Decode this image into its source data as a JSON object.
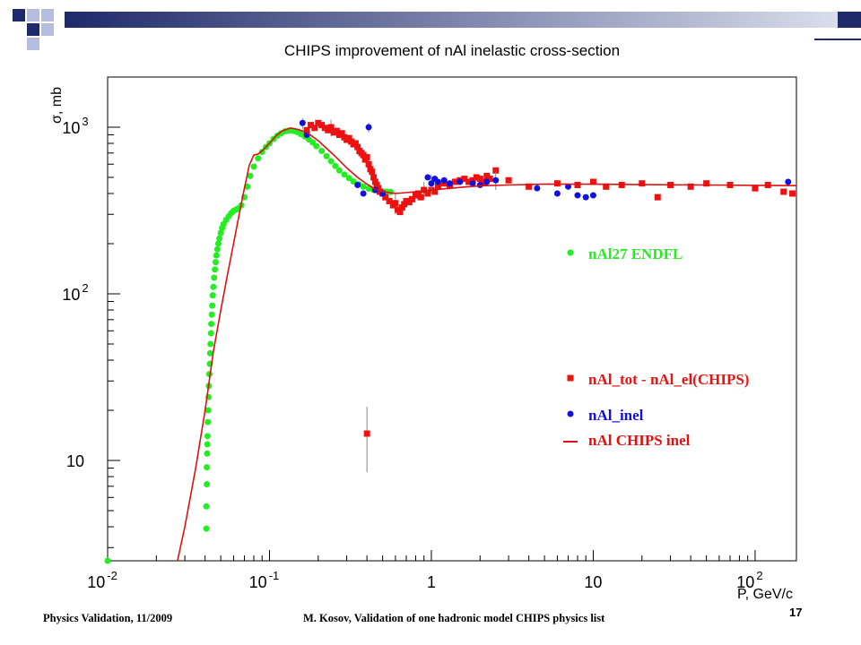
{
  "slide": {
    "footer_left": "Physics Validation, 11/2009",
    "footer_center": "M. Kosov,  Validation of one hadronic model CHIPS physics list",
    "page_number": "17",
    "colors": {
      "header_bar_dark": "#1e2a6a",
      "header_bar_light": "#dfe2ef",
      "square_dark": "#1e2a6a",
      "square_light": "#b6bee0"
    }
  },
  "chart_data": {
    "type": "scatter",
    "title": "CHIPS improvement of nAl inelastic cross-section",
    "xlabel": "P, GeV/c",
    "ylabel": "σ, mb",
    "xscale": "log",
    "yscale": "log",
    "xlim": [
      0.01,
      180
    ],
    "ylim": [
      2.5,
      2000
    ],
    "x_ticks": [
      {
        "v": 0.01,
        "b": "10",
        "e": "-2"
      },
      {
        "v": 0.1,
        "b": "10",
        "e": "-1"
      },
      {
        "v": 1,
        "b": "1",
        "e": ""
      },
      {
        "v": 10,
        "b": "10",
        "e": ""
      },
      {
        "v": 100,
        "b": "10",
        "e": "2"
      }
    ],
    "y_ticks": [
      {
        "v": 10,
        "b": "10",
        "e": ""
      },
      {
        "v": 100,
        "b": "10",
        "e": "2"
      },
      {
        "v": 1000,
        "b": "10",
        "e": "3"
      }
    ],
    "grid": false,
    "legend_position": "right",
    "series": [
      {
        "name": "nAl27 ENDFL",
        "kind": "points",
        "color": "#22ee22",
        "points": [
          [
            0.01,
            2.5
          ],
          [
            0.0407,
            3.9
          ],
          [
            0.0407,
            5.3
          ],
          [
            0.041,
            7.2
          ],
          [
            0.041,
            9.1
          ],
          [
            0.0412,
            11
          ],
          [
            0.0413,
            12.5
          ],
          [
            0.0414,
            14
          ],
          [
            0.0416,
            17
          ],
          [
            0.0418,
            20
          ],
          [
            0.042,
            24
          ],
          [
            0.0422,
            28
          ],
          [
            0.0425,
            33
          ],
          [
            0.0428,
            38
          ],
          [
            0.043,
            44
          ],
          [
            0.0432,
            50
          ],
          [
            0.0435,
            58
          ],
          [
            0.0437,
            66
          ],
          [
            0.044,
            75
          ],
          [
            0.0443,
            85
          ],
          [
            0.0446,
            98
          ],
          [
            0.045,
            110
          ],
          [
            0.0455,
            125
          ],
          [
            0.046,
            140
          ],
          [
            0.0465,
            155
          ],
          [
            0.047,
            170
          ],
          [
            0.0476,
            185
          ],
          [
            0.0483,
            200
          ],
          [
            0.049,
            215
          ],
          [
            0.05,
            232
          ],
          [
            0.051,
            248
          ],
          [
            0.052,
            262
          ],
          [
            0.054,
            278
          ],
          [
            0.056,
            292
          ],
          [
            0.058,
            305
          ],
          [
            0.06,
            315
          ],
          [
            0.062,
            320
          ],
          [
            0.064,
            325
          ],
          [
            0.067,
            340
          ],
          [
            0.07,
            380
          ],
          [
            0.073,
            440
          ],
          [
            0.076,
            510
          ],
          [
            0.08,
            580
          ],
          [
            0.085,
            650
          ],
          [
            0.09,
            710
          ],
          [
            0.095,
            760
          ],
          [
            0.1,
            800
          ],
          [
            0.106,
            850
          ],
          [
            0.112,
            890
          ],
          [
            0.118,
            920
          ],
          [
            0.125,
            945
          ],
          [
            0.132,
            955
          ],
          [
            0.14,
            950
          ],
          [
            0.148,
            935
          ],
          [
            0.156,
            910
          ],
          [
            0.165,
            880
          ],
          [
            0.175,
            845
          ],
          [
            0.185,
            810
          ],
          [
            0.195,
            770
          ],
          [
            0.21,
            720
          ],
          [
            0.225,
            670
          ],
          [
            0.24,
            625
          ],
          [
            0.255,
            585
          ],
          [
            0.27,
            550
          ],
          [
            0.29,
            520
          ],
          [
            0.31,
            495
          ],
          [
            0.33,
            472
          ],
          [
            0.355,
            455
          ],
          [
            0.38,
            440
          ],
          [
            0.41,
            428
          ],
          [
            0.44,
            420
          ],
          [
            0.47,
            415
          ],
          [
            0.5,
            412
          ],
          [
            0.53,
            410
          ],
          [
            0.56,
            409
          ]
        ]
      },
      {
        "name": "nAl_tot - nAl_el(CHIPS)",
        "kind": "points",
        "color": "#ee1111",
        "points": [
          [
            0.17,
            960
          ],
          [
            0.18,
            1030
          ],
          [
            0.19,
            990
          ],
          [
            0.2,
            1060
          ],
          [
            0.21,
            1030
          ],
          [
            0.22,
            990
          ],
          [
            0.23,
            960
          ],
          [
            0.24,
            1000
          ],
          [
            0.25,
            930
          ],
          [
            0.26,
            950
          ],
          [
            0.27,
            900
          ],
          [
            0.28,
            920
          ],
          [
            0.29,
            870
          ],
          [
            0.3,
            840
          ],
          [
            0.31,
            860
          ],
          [
            0.32,
            820
          ],
          [
            0.33,
            790
          ],
          [
            0.34,
            800
          ],
          [
            0.35,
            760
          ],
          [
            0.36,
            720
          ],
          [
            0.37,
            700
          ],
          [
            0.38,
            680
          ],
          [
            0.39,
            640
          ],
          [
            0.4,
            660
          ],
          [
            0.41,
            600
          ],
          [
            0.42,
            560
          ],
          [
            0.43,
            540
          ],
          [
            0.44,
            500
          ],
          [
            0.45,
            470
          ],
          [
            0.46,
            450
          ],
          [
            0.47,
            430
          ],
          [
            0.48,
            410
          ],
          [
            0.5,
            400
          ],
          [
            0.52,
            380
          ],
          [
            0.55,
            360
          ],
          [
            0.58,
            340
          ],
          [
            0.6,
            350
          ],
          [
            0.62,
            320
          ],
          [
            0.64,
            310
          ],
          [
            0.66,
            330
          ],
          [
            0.68,
            345
          ],
          [
            0.7,
            360
          ],
          [
            0.73,
            355
          ],
          [
            0.76,
            370
          ],
          [
            0.8,
            390
          ],
          [
            0.83,
            400
          ],
          [
            0.86,
            380
          ],
          [
            0.9,
            420
          ],
          [
            0.95,
            400
          ],
          [
            1.0,
            420
          ],
          [
            1.05,
            410
          ],
          [
            1.1,
            440
          ],
          [
            1.2,
            460
          ],
          [
            1.3,
            450
          ],
          [
            1.4,
            470
          ],
          [
            1.5,
            480
          ],
          [
            1.6,
            490
          ],
          [
            1.7,
            470
          ],
          [
            1.8,
            480
          ],
          [
            1.9,
            500
          ],
          [
            2.0,
            490
          ],
          [
            2.1,
            470
          ],
          [
            2.2,
            510
          ],
          [
            2.3,
            490
          ],
          [
            2.5,
            550
          ],
          [
            3.0,
            480
          ],
          [
            4.0,
            440
          ],
          [
            6.0,
            460
          ],
          [
            8.0,
            450
          ],
          [
            10.0,
            470
          ],
          [
            12.0,
            440
          ],
          [
            15.0,
            450
          ],
          [
            20.0,
            460
          ],
          [
            25.0,
            380
          ],
          [
            30.0,
            450
          ],
          [
            40.0,
            440
          ],
          [
            50.0,
            460
          ],
          [
            70.0,
            450
          ],
          [
            100.0,
            430
          ],
          [
            120.0,
            450
          ],
          [
            150.0,
            410
          ],
          [
            170.0,
            400
          ],
          [
            0.4,
            14.5
          ]
        ],
        "error_bars": [
          [
            0.4,
            14.5,
            8.5,
            21
          ],
          [
            0.24,
            1000,
            880,
            1110
          ],
          [
            0.6,
            350,
            300,
            400
          ],
          [
            0.9,
            420,
            370,
            470
          ]
        ]
      },
      {
        "name": "nAl_inel",
        "kind": "points",
        "color": "#1111dd",
        "points": [
          [
            0.16,
            1060
          ],
          [
            0.17,
            900
          ],
          [
            0.35,
            450
          ],
          [
            0.38,
            400
          ],
          [
            0.41,
            1000
          ],
          [
            0.45,
            420
          ],
          [
            0.5,
            400
          ],
          [
            0.95,
            500
          ],
          [
            1.0,
            460
          ],
          [
            1.05,
            490
          ],
          [
            1.1,
            470
          ],
          [
            1.2,
            480
          ],
          [
            1.3,
            460
          ],
          [
            1.5,
            470
          ],
          [
            1.8,
            460
          ],
          [
            2.0,
            450
          ],
          [
            2.2,
            470
          ],
          [
            2.5,
            480
          ],
          [
            4.5,
            430
          ],
          [
            6.0,
            400
          ],
          [
            7.0,
            440
          ],
          [
            8.0,
            390
          ],
          [
            9.0,
            380
          ],
          [
            10.0,
            390
          ],
          [
            160.0,
            470
          ]
        ],
        "error_bars": [
          [
            0.16,
            1060,
            980,
            1130
          ],
          [
            0.41,
            1000,
            930,
            1060
          ],
          [
            1.0,
            460,
            400,
            520
          ],
          [
            2.5,
            480,
            420,
            540
          ]
        ]
      },
      {
        "name": "nAl CHIPS inel",
        "kind": "line",
        "color": "#dd1111",
        "points": [
          [
            0.027,
            2.5
          ],
          [
            0.03,
            4
          ],
          [
            0.035,
            9
          ],
          [
            0.04,
            20
          ],
          [
            0.045,
            45
          ],
          [
            0.05,
            80
          ],
          [
            0.055,
            130
          ],
          [
            0.06,
            200
          ],
          [
            0.065,
            300
          ],
          [
            0.07,
            430
          ],
          [
            0.075,
            590
          ],
          [
            0.08,
            680
          ],
          [
            0.085,
            690
          ],
          [
            0.09,
            720
          ],
          [
            0.1,
            800
          ],
          [
            0.11,
            890
          ],
          [
            0.12,
            950
          ],
          [
            0.135,
            990
          ],
          [
            0.15,
            970
          ],
          [
            0.17,
            930
          ],
          [
            0.2,
            830
          ],
          [
            0.25,
            680
          ],
          [
            0.3,
            570
          ],
          [
            0.35,
            500
          ],
          [
            0.4,
            455
          ],
          [
            0.45,
            425
          ],
          [
            0.5,
            410
          ],
          [
            0.6,
            400
          ],
          [
            0.7,
            405
          ],
          [
            0.8,
            410
          ],
          [
            1.0,
            420
          ],
          [
            1.5,
            435
          ],
          [
            2.0,
            445
          ],
          [
            3.0,
            450
          ],
          [
            5.0,
            455
          ],
          [
            10.0,
            455
          ],
          [
            20.0,
            452
          ],
          [
            50.0,
            450
          ],
          [
            100.0,
            448
          ],
          [
            180.0,
            446
          ]
        ]
      }
    ]
  }
}
